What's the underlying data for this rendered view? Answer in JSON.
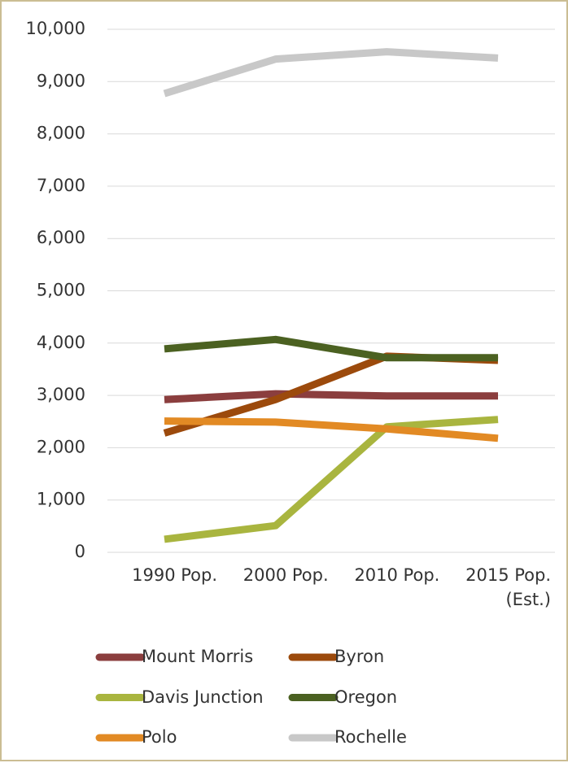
{
  "chart_data": {
    "type": "line",
    "categories": [
      "1990 Pop.",
      "2000 Pop.",
      "2010 Pop.",
      "2015 Pop. (Est.)"
    ],
    "series": [
      {
        "name": "Mount Morris",
        "color": "#8b3e3e",
        "values": [
          2920,
          3030,
          2990,
          2990
        ]
      },
      {
        "name": "Byron",
        "color": "#9c4a0c",
        "values": [
          2280,
          2920,
          3750,
          3670
        ]
      },
      {
        "name": "Davis Junction",
        "color": "#a9b53f",
        "values": [
          250,
          510,
          2400,
          2540
        ]
      },
      {
        "name": "Oregon",
        "color": "#4b6121",
        "values": [
          3890,
          4070,
          3720,
          3720
        ]
      },
      {
        "name": "Polo",
        "color": "#e28a24",
        "values": [
          2510,
          2490,
          2360,
          2180
        ]
      },
      {
        "name": "Rochelle",
        "color": "#c8c8c8",
        "values": [
          8770,
          9430,
          9570,
          9450
        ]
      }
    ],
    "ylim": [
      0,
      10000
    ],
    "yticks": [
      0,
      {
        "value": 1000,
        "label": "1,000"
      },
      {
        "value": 2000,
        "label": "2,000"
      },
      {
        "value": 3000,
        "label": "3,000"
      },
      {
        "value": 4000,
        "label": "4,000"
      },
      {
        "value": 5000,
        "label": "5,000"
      },
      {
        "value": 6000,
        "label": "6,000"
      },
      {
        "value": 7000,
        "label": "7,000"
      },
      {
        "value": 8000,
        "label": "8,000"
      },
      {
        "value": 9000,
        "label": "9,000"
      },
      {
        "value": 10000,
        "label": "10,000"
      }
    ],
    "grid": true,
    "legend": "bottom"
  }
}
